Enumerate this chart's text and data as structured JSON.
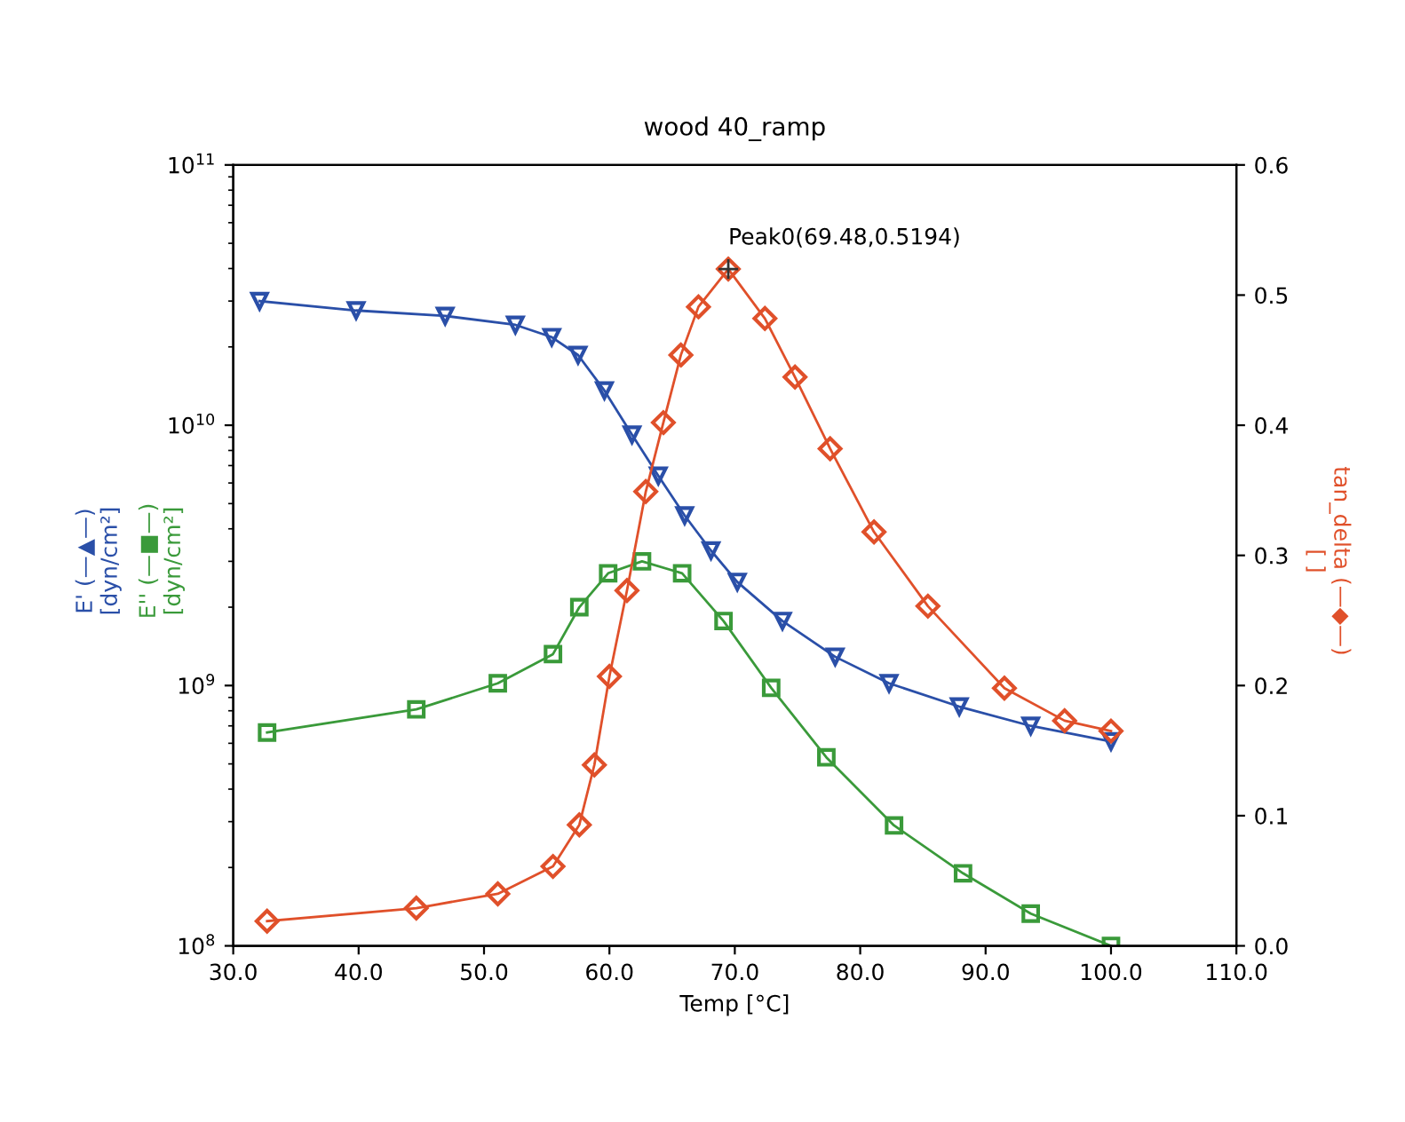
{
  "chart_data": {
    "type": "line",
    "title": "wood 40_ramp",
    "xlabel": "Temp [°C]",
    "xlim": [
      30,
      110
    ],
    "xticks": [
      {
        "value": 30,
        "label": "30.0"
      },
      {
        "value": 40,
        "label": "40.0"
      },
      {
        "value": 50,
        "label": "50.0"
      },
      {
        "value": 60,
        "label": "60.0"
      },
      {
        "value": 70,
        "label": "70.0"
      },
      {
        "value": 80,
        "label": "80.0"
      },
      {
        "value": 90,
        "label": "90.0"
      },
      {
        "value": 100,
        "label": "100.0"
      },
      {
        "value": 110,
        "label": "110.0"
      }
    ],
    "log": "y",
    "ylim": [
      100000000,
      100000000000
    ],
    "yticks": [
      {
        "value": 100000000,
        "label": "10$^{8}$"
      },
      {
        "value": 1000000000,
        "label": "10$^{9}$"
      },
      {
        "value": 10000000000,
        "label": "10$^{10}$"
      },
      {
        "value": 100000000000,
        "label": "10$^{11}$"
      }
    ],
    "y2lim": [
      0,
      0.6
    ],
    "y2ticks": [
      {
        "value": 0,
        "label": "0.0"
      },
      {
        "value": 0.1,
        "label": "0.1"
      },
      {
        "value": 0.2,
        "label": "0.2"
      },
      {
        "value": 0.3,
        "label": "0.3"
      },
      {
        "value": 0.4,
        "label": "0.4"
      },
      {
        "value": 0.5,
        "label": "0.5"
      },
      {
        "value": 0.6,
        "label": "0.6"
      }
    ],
    "grid": false,
    "legend": false,
    "series": [
      {
        "name": "E' (—▲—)\n[dyn/cm²]",
        "color": "#2a4fa8",
        "marker": "triangle",
        "x": [
          32.1,
          39.8,
          46.9,
          52.5,
          55.4,
          57.5,
          59.6,
          61.8,
          63.9,
          66.0,
          68.1,
          70.2,
          73.8,
          78.0,
          82.3,
          87.9,
          93.6,
          100
        ],
        "values": [
          30000000000.0,
          27600000000.0,
          26300000000.0,
          24300000000.0,
          21800000000.0,
          18600000000.0,
          13600000000.0,
          9200000000.0,
          6400000000.0,
          4500000000.0,
          3300000000.0,
          2500000000.0,
          1770000000.0,
          1290000000.0,
          1020000000.0,
          830000000.0,
          700000000.0,
          610000000.0
        ]
      },
      {
        "name": "E'' (—■—)\n[dyn/cm²]",
        "color": "#3a9a3a",
        "marker": "square",
        "x": [
          32.7,
          44.6,
          51.1,
          55.5,
          57.6,
          59.9,
          62.6,
          65.8,
          69.1,
          72.9,
          77.3,
          82.7,
          88.2,
          93.6,
          100
        ],
        "values": [
          660000000.0,
          810000000.0,
          1020000000.0,
          1320000000.0,
          2000000000.0,
          2700000000.0,
          3000000000.0,
          2700000000.0,
          1770000000.0,
          980000000.0,
          530000000.0,
          290000000.0,
          190000000.0,
          133000000.0,
          100000000.0
        ]
      },
      {
        "name": "tan_delta (—◆—)\n[ ]",
        "color": "#e0502a",
        "marker": "diamond",
        "axis": "y2",
        "x": [
          32.7,
          44.6,
          51.1,
          55.5,
          57.6,
          58.8,
          60.0,
          61.4,
          62.9,
          64.3,
          65.7,
          67.1,
          69.48,
          72.4,
          74.8,
          77.6,
          81.1,
          85.4,
          91.5,
          96.3,
          100
        ],
        "values": [
          0.019,
          0.029,
          0.04,
          0.061,
          0.093,
          0.139,
          0.207,
          0.273,
          0.349,
          0.402,
          0.454,
          0.491,
          0.52,
          0.482,
          0.437,
          0.382,
          0.318,
          0.261,
          0.198,
          0.173,
          0.165
        ]
      }
    ],
    "annotations": [
      "Peak0(69.48,0.5194)"
    ]
  }
}
